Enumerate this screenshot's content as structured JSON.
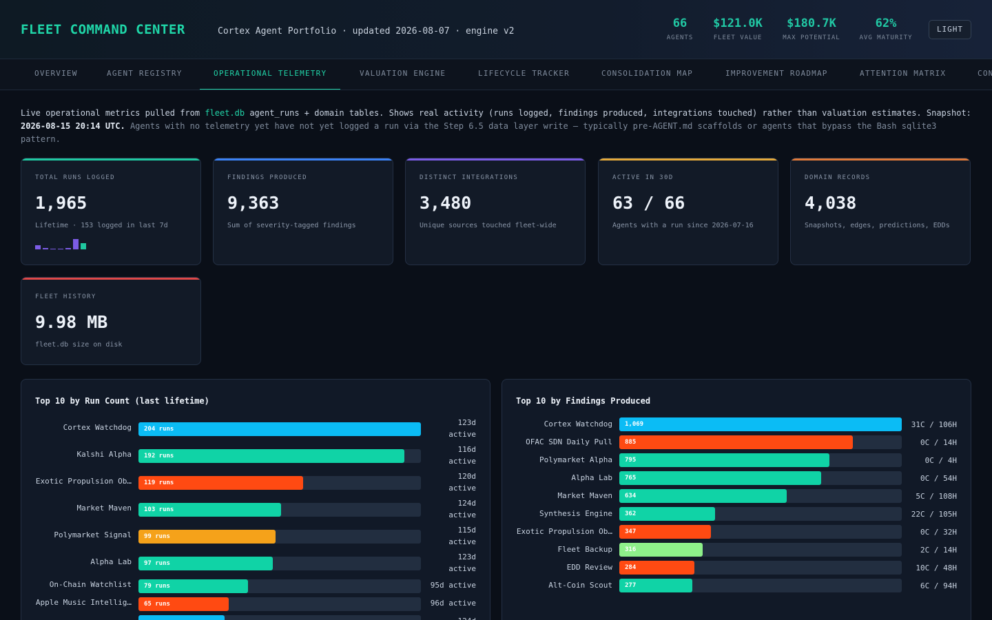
{
  "header": {
    "brand": "FLEET COMMAND CENTER",
    "subtitle": "Cortex Agent Portfolio · updated 2026-08-07 · engine v2",
    "stats": [
      {
        "value": "66",
        "label": "AGENTS"
      },
      {
        "value": "$121.0K",
        "label": "FLEET VALUE"
      },
      {
        "value": "$180.7K",
        "label": "MAX POTENTIAL"
      },
      {
        "value": "62%",
        "label": "AVG MATURITY"
      }
    ],
    "theme_button": "LIGHT"
  },
  "nav": {
    "tabs": [
      {
        "label": "OVERVIEW",
        "active": false
      },
      {
        "label": "AGENT REGISTRY",
        "active": false
      },
      {
        "label": "OPERATIONAL TELEMETRY",
        "active": true
      },
      {
        "label": "VALUATION ENGINE",
        "active": false
      },
      {
        "label": "LIFECYCLE TRACKER",
        "active": false
      },
      {
        "label": "CONSOLIDATION MAP",
        "active": false
      },
      {
        "label": "IMPROVEMENT ROADMAP",
        "active": false
      },
      {
        "label": "ATTENTION MATRIX",
        "active": false
      },
      {
        "label": "CON",
        "active": false
      }
    ]
  },
  "intro": {
    "t1": "Live operational metrics pulled from ",
    "db": "fleet.db",
    "t2": " agent_runs + domain tables. Shows real activity (runs logged, findings produced, integrations touched) rather than valuation estimates. Snapshot: ",
    "snapshot": "2026-08-15 20:14 UTC.",
    "t3": " Agents with no telemetry yet have not yet logged a run via the Step 6.5 data layer write — typically pre-AGENT.md scaffolds or agents that bypass the Bash sqlite3 pattern."
  },
  "cards": [
    {
      "label": "TOTAL RUNS LOGGED",
      "value": "1,965",
      "sub": "Lifetime · 153 logged in last 7d",
      "color": "#1fc8a0"
    },
    {
      "label": "FINDINGS PRODUCED",
      "value": "9,363",
      "sub": "Sum of severity-tagged findings",
      "color": "#3b82f6"
    },
    {
      "label": "DISTINCT INTEGRATIONS",
      "value": "3,480",
      "sub": "Unique sources touched fleet-wide",
      "color": "#7c5ce6"
    },
    {
      "label": "ACTIVE IN 30D",
      "value": "63 / 66",
      "sub": "Agents with a run since 2026-07-16",
      "color": "#e5a93a"
    },
    {
      "label": "DOMAIN RECORDS",
      "value": "4,038",
      "sub": "Snapshots, edges, predictions, EDDs",
      "color": "#e07a3a"
    },
    {
      "label": "FLEET HISTORY",
      "value": "9.98 MB",
      "sub": "fleet.db size on disk",
      "color": "#e04848"
    }
  ],
  "spark": [
    {
      "level": 0.4,
      "color": "#7c5ce6"
    },
    {
      "level": 0.15,
      "color": "#7c5ce6"
    },
    {
      "level": 0.05,
      "color": "#7c5ce6"
    },
    {
      "level": 0.05,
      "color": "#7c5ce6"
    },
    {
      "level": 0.1,
      "color": "#7c5ce6"
    },
    {
      "level": 0.95,
      "color": "#7c5ce6"
    },
    {
      "level": 0.55,
      "color": "#1fc8a0"
    }
  ],
  "runs_panel": {
    "title": "Top 10 by Run Count (last lifetime)",
    "max": 204,
    "rows": [
      {
        "name": "Cortex Watchdog",
        "value": 204,
        "label": "204 runs",
        "note": "123d active",
        "color": "#0bbcf5"
      },
      {
        "name": "Kalshi Alpha",
        "value": 192,
        "label": "192 runs",
        "note": "116d active",
        "color": "#10d3a6"
      },
      {
        "name": "Exotic Propulsion Ob…",
        "value": 119,
        "label": "119 runs",
        "note": "120d active",
        "color": "#ff4a12"
      },
      {
        "name": "Market Maven",
        "value": 103,
        "label": "103 runs",
        "note": "124d active",
        "color": "#10d3a6"
      },
      {
        "name": "Polymarket Signal",
        "value": 99,
        "label": "99 runs",
        "note": "115d active",
        "color": "#f5a21a"
      },
      {
        "name": "Alpha Lab",
        "value": 97,
        "label": "97 runs",
        "note": "123d active",
        "color": "#10d3a6"
      },
      {
        "name": "On-Chain Watchlist",
        "value": 79,
        "label": "79 runs",
        "note": "95d active",
        "color": "#10d3a6"
      },
      {
        "name": "Apple Music Intellig…",
        "value": 65,
        "label": "65 runs",
        "note": "96d active",
        "color": "#ff4a12"
      },
      {
        "name": "",
        "value": 62,
        "label": "",
        "note": "124d",
        "color": "#0bbcf5"
      }
    ]
  },
  "findings_panel": {
    "title": "Top 10 by Findings Produced",
    "max": 1069,
    "rows": [
      {
        "name": "Cortex Watchdog",
        "value": 1069,
        "label": "1,069",
        "note": "31C / 106H",
        "color": "#0bbcf5"
      },
      {
        "name": "OFAC SDN Daily Pull",
        "value": 885,
        "label": "885",
        "note": "0C / 14H",
        "color": "#ff4a12"
      },
      {
        "name": "Polymarket Alpha",
        "value": 795,
        "label": "795",
        "note": "0C / 4H",
        "color": "#10d3a6"
      },
      {
        "name": "Alpha Lab",
        "value": 765,
        "label": "765",
        "note": "0C / 54H",
        "color": "#10d3a6"
      },
      {
        "name": "Market Maven",
        "value": 634,
        "label": "634",
        "note": "5C / 108H",
        "color": "#10d3a6"
      },
      {
        "name": "Synthesis Engine",
        "value": 362,
        "label": "362",
        "note": "22C / 105H",
        "color": "#10d3a6"
      },
      {
        "name": "Exotic Propulsion Ob…",
        "value": 347,
        "label": "347",
        "note": "0C / 32H",
        "color": "#ff4a12"
      },
      {
        "name": "Fleet Backup",
        "value": 316,
        "label": "316",
        "note": "2C / 14H",
        "color": "#8ef08a"
      },
      {
        "name": "EDD Review",
        "value": 284,
        "label": "284",
        "note": "10C / 48H",
        "color": "#ff4a12"
      },
      {
        "name": "Alt-Coin Scout",
        "value": 277,
        "label": "277",
        "note": "6C / 94H",
        "color": "#10d3a6"
      }
    ]
  }
}
